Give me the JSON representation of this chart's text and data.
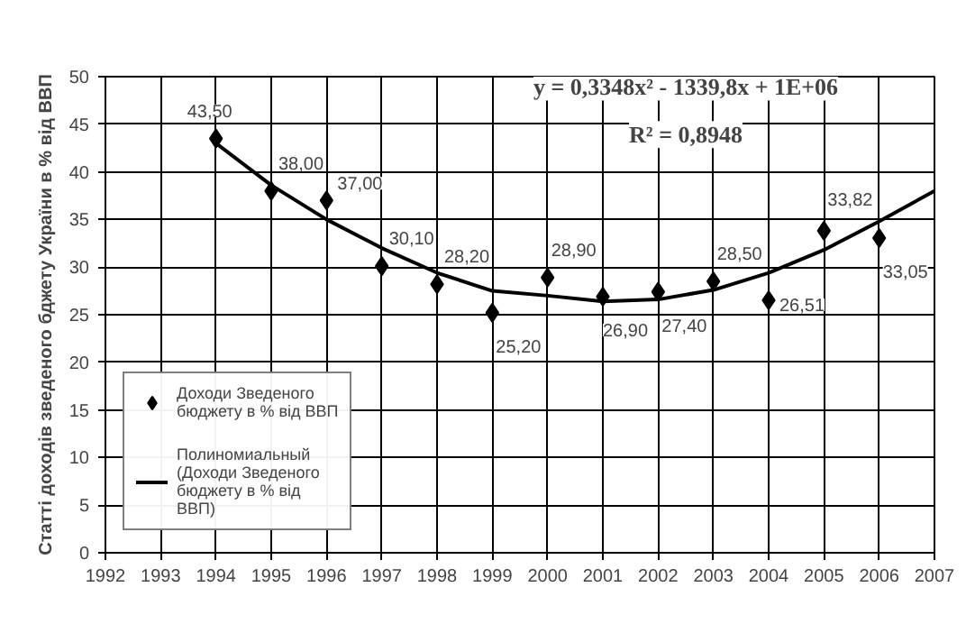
{
  "chart_data": {
    "type": "scatter",
    "ylabel": "Статті доходів зведеного бджету України в % від ВВП",
    "x": [
      1994,
      1995,
      1996,
      1997,
      1998,
      1999,
      2000,
      2001,
      2002,
      2003,
      2004,
      2005,
      2006
    ],
    "series": [
      {
        "name": "Доходи Зведеного бюджету в % від ВВП",
        "color": "#000000",
        "marker": "diamond",
        "values": [
          43.5,
          38.0,
          37.0,
          30.1,
          28.2,
          25.2,
          28.9,
          26.9,
          27.4,
          28.5,
          26.51,
          33.82,
          33.05
        ],
        "value_labels": [
          "43,50",
          "38,00",
          "37,00",
          "30,10",
          "28,20",
          "25,20",
          "28,90",
          "26,90",
          "27,40",
          "28,50",
          "26,51",
          "33,82",
          "33,05"
        ]
      },
      {
        "name": "Полиномиальный (Доходи Зведеного бюджету в % від ВВП)",
        "type": "line",
        "color": "#000000",
        "x": [
          1994,
          1995,
          1996,
          1997,
          1998,
          1999,
          2000,
          2001,
          2002,
          2003,
          2004,
          2005,
          2006,
          2007
        ],
        "values": [
          43.0,
          38.6,
          35.0,
          32.0,
          29.4,
          27.5,
          27.0,
          26.4,
          26.6,
          27.6,
          29.4,
          31.8,
          34.8,
          38.0
        ]
      }
    ],
    "annotations": [
      {
        "text": "y = 0,3348x² - 1339,8x + 1E+06"
      },
      {
        "text": "R² = 0,8948"
      }
    ],
    "xlim": [
      1992,
      2007
    ],
    "xticks": [
      1992,
      1993,
      1994,
      1995,
      1996,
      1997,
      1998,
      1999,
      2000,
      2001,
      2002,
      2003,
      2004,
      2005,
      2006,
      2007
    ],
    "ylim": [
      0,
      50
    ],
    "yticks": [
      0,
      5,
      10,
      15,
      20,
      25,
      30,
      35,
      40,
      45,
      50
    ],
    "grid": true,
    "legend": "left"
  }
}
